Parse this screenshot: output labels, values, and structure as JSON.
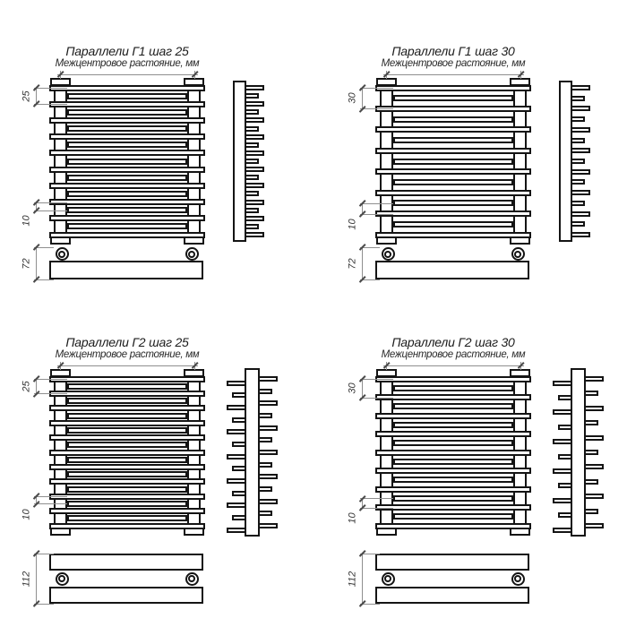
{
  "drawing_labels": {
    "center_distance": "Межцентровое растояние, мм"
  },
  "variants": [
    {
      "title": "Параллели Г1 шаг 25",
      "series": "Параллели",
      "type": "Г1",
      "rows": "single",
      "step_mm": "25",
      "row_offset_mm": "10",
      "depth_mm": "72",
      "front_tube_count": 19,
      "side_tube_count": 19
    },
    {
      "title": "Параллели Г1 шаг 30",
      "series": "Параллели",
      "type": "Г1",
      "rows": "single",
      "step_mm": "30",
      "row_offset_mm": "10",
      "depth_mm": "72",
      "front_tube_count": 15,
      "side_tube_count": 15
    },
    {
      "title": "Параллели Г2 шаг 25",
      "series": "Параллели",
      "type": "Г2",
      "rows": "double",
      "step_mm": "25",
      "row_offset_mm": "10",
      "depth_mm": "112",
      "front_tube_count": 21,
      "side_tube_count_per_side": 13
    },
    {
      "title": "Параллели Г2 шаг 30",
      "series": "Параллели",
      "type": "Г2",
      "rows": "double",
      "step_mm": "30",
      "row_offset_mm": "10",
      "depth_mm": "112",
      "front_tube_count": 17,
      "side_tube_count_per_side": 11
    }
  ],
  "colors": {
    "line": "#141414",
    "dim_line": "#8f8f8f",
    "dim_text": "#333333",
    "background": "#ffffff"
  }
}
